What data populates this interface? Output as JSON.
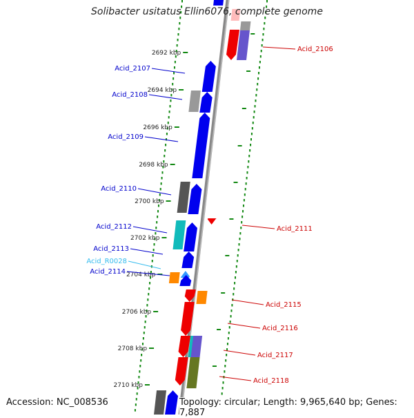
{
  "title": "Solibacter usitatus Ellin6076, complete genome",
  "accession": "Accession: NC_008536",
  "summary": "Topology: circular; Length: 9,965,640 bp; Genes: 7,887",
  "ticks": [
    {
      "label": "2692 kbp"
    },
    {
      "label": "2694 kbp"
    },
    {
      "label": "2696 kbp"
    },
    {
      "label": "2698 kbp"
    },
    {
      "label": "2700 kbp"
    },
    {
      "label": "2702 kbp"
    },
    {
      "label": "2704 kbp"
    },
    {
      "label": "2706 kbp"
    },
    {
      "label": "2708 kbp"
    },
    {
      "label": "2710 kbp"
    }
  ],
  "left_labels": [
    {
      "text": "Acid_2107",
      "color": "#0000cc"
    },
    {
      "text": "Acid_2108",
      "color": "#0000cc"
    },
    {
      "text": "Acid_2109",
      "color": "#0000cc"
    },
    {
      "text": "Acid_2110",
      "color": "#0000cc"
    },
    {
      "text": "Acid_2112",
      "color": "#0000cc"
    },
    {
      "text": "Acid_2113",
      "color": "#0000cc"
    },
    {
      "text": "Acid_R0028",
      "color": "#33bbee"
    },
    {
      "text": "Acid_2114",
      "color": "#0000cc"
    }
  ],
  "right_labels": [
    {
      "text": "Acid_2106",
      "color": "#cc0000"
    },
    {
      "text": "Acid_2111",
      "color": "#cc0000"
    },
    {
      "text": "Acid_2115",
      "color": "#cc0000"
    },
    {
      "text": "Acid_2116",
      "color": "#cc0000"
    },
    {
      "text": "Acid_2117",
      "color": "#cc0000"
    },
    {
      "text": "Acid_2118",
      "color": "#cc0000"
    }
  ],
  "colors": {
    "forward_strand": "#0000ee",
    "reverse_strand": "#ee0000",
    "backbone": "#888888",
    "tick": "#118811",
    "cog_gray": "#999999",
    "cog_dark": "#555555",
    "cog_cyan": "#11bbbb",
    "cog_orange": "#ff8800",
    "cog_purple": "#6655cc",
    "cog_olive": "#667722",
    "cog_pink": "#ffbbbb",
    "rna": "#3399ff"
  }
}
